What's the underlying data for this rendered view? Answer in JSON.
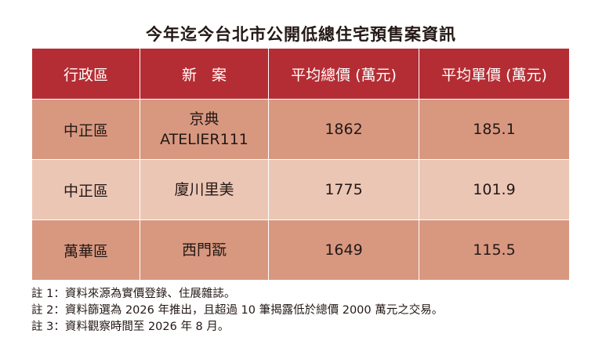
{
  "title": "今年迄今台北市公開低總住宅預售案資訊",
  "table": {
    "headers": [
      "行政區",
      "新　案",
      "平均總價 (萬元)",
      "平均單價 (萬元)"
    ],
    "rows": [
      {
        "district": "中正區",
        "project_line1": "京典",
        "project_line2": "ATELIER111",
        "avg_total": "1862",
        "avg_unit": "185.1"
      },
      {
        "district": "中正區",
        "project_line1": "廈川里美",
        "project_line2": "",
        "avg_total": "1775",
        "avg_unit": "101.9"
      },
      {
        "district": "萬華區",
        "project_line1": "西門翫",
        "project_line2": "",
        "avg_total": "1649",
        "avg_unit": "115.5"
      }
    ]
  },
  "notes": [
    "註 1：資料來源為實價登錄、住展雜誌。",
    "註 2：資料篩選為 2026 年推出，且超過 10 筆揭露低於總價 2000 萬元之交易。",
    "註 3：資料觀察時間至 2026 年 8 月。"
  ],
  "colors": {
    "header_bg": "#b52d34",
    "row_dark": "#d89880",
    "row_light": "#ecc6b5"
  }
}
